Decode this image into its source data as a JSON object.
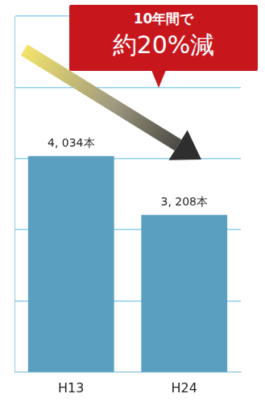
{
  "chart_data": {
    "type": "bar",
    "categories": [
      "H13",
      "H24"
    ],
    "values": [
      4034,
      3208
    ],
    "value_labels": [
      "4, 034本",
      "3, 208本"
    ],
    "color": "#5a9fbf",
    "ylim": [
      1000,
      6000
    ],
    "yticks": [
      1000,
      2000,
      3000,
      4000,
      5000,
      6000
    ],
    "grid": true,
    "tick_labels": "x",
    "data_labels": true,
    "annotations": [
      "10年間で",
      "約20%減"
    ]
  }
}
